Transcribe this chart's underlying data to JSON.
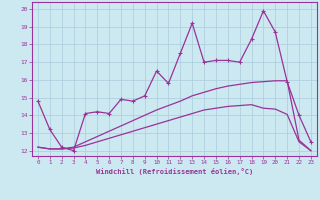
{
  "xlabel": "Windchill (Refroidissement éolien,°C)",
  "bg_color": "#cce8f0",
  "line_color": "#993399",
  "grid_color": "#aaccdd",
  "xlim": [
    -0.5,
    23.5
  ],
  "ylim": [
    11.7,
    20.4
  ],
  "xticks": [
    0,
    1,
    2,
    3,
    4,
    5,
    6,
    7,
    8,
    9,
    10,
    11,
    12,
    13,
    14,
    15,
    16,
    17,
    18,
    19,
    20,
    21,
    22,
    23
  ],
  "yticks": [
    12,
    13,
    14,
    15,
    16,
    17,
    18,
    19,
    20
  ],
  "line1_x": [
    0,
    1,
    2,
    3,
    4,
    5,
    6,
    7,
    8,
    9,
    10,
    11,
    12,
    13,
    14,
    15,
    16,
    17,
    18,
    19,
    20,
    21,
    22,
    23
  ],
  "line1_y": [
    14.8,
    13.2,
    12.2,
    12.0,
    14.1,
    14.2,
    14.1,
    14.9,
    14.8,
    15.1,
    16.5,
    15.8,
    17.5,
    19.2,
    17.0,
    17.1,
    17.1,
    17.0,
    18.3,
    19.9,
    18.7,
    15.9,
    14.0,
    12.5
  ],
  "line2_x": [
    0,
    1,
    2,
    3,
    4,
    5,
    6,
    7,
    8,
    9,
    10,
    11,
    12,
    13,
    14,
    15,
    16,
    17,
    18,
    19,
    20,
    21,
    22,
    23
  ],
  "line2_y": [
    12.2,
    12.1,
    12.1,
    12.15,
    12.3,
    12.5,
    12.7,
    12.9,
    13.1,
    13.3,
    13.5,
    13.7,
    13.9,
    14.1,
    14.3,
    14.4,
    14.5,
    14.55,
    14.6,
    14.4,
    14.35,
    14.05,
    12.5,
    12.0
  ],
  "line3_x": [
    0,
    1,
    2,
    3,
    4,
    5,
    6,
    7,
    8,
    9,
    10,
    11,
    12,
    13,
    14,
    15,
    16,
    17,
    18,
    19,
    20,
    21,
    22,
    23
  ],
  "line3_y": [
    12.2,
    12.1,
    12.1,
    12.2,
    12.5,
    12.8,
    13.1,
    13.4,
    13.7,
    14.0,
    14.3,
    14.55,
    14.8,
    15.1,
    15.3,
    15.5,
    15.65,
    15.75,
    15.85,
    15.9,
    15.95,
    15.95,
    12.6,
    12.0
  ],
  "figsize": [
    3.2,
    2.0
  ],
  "dpi": 100
}
